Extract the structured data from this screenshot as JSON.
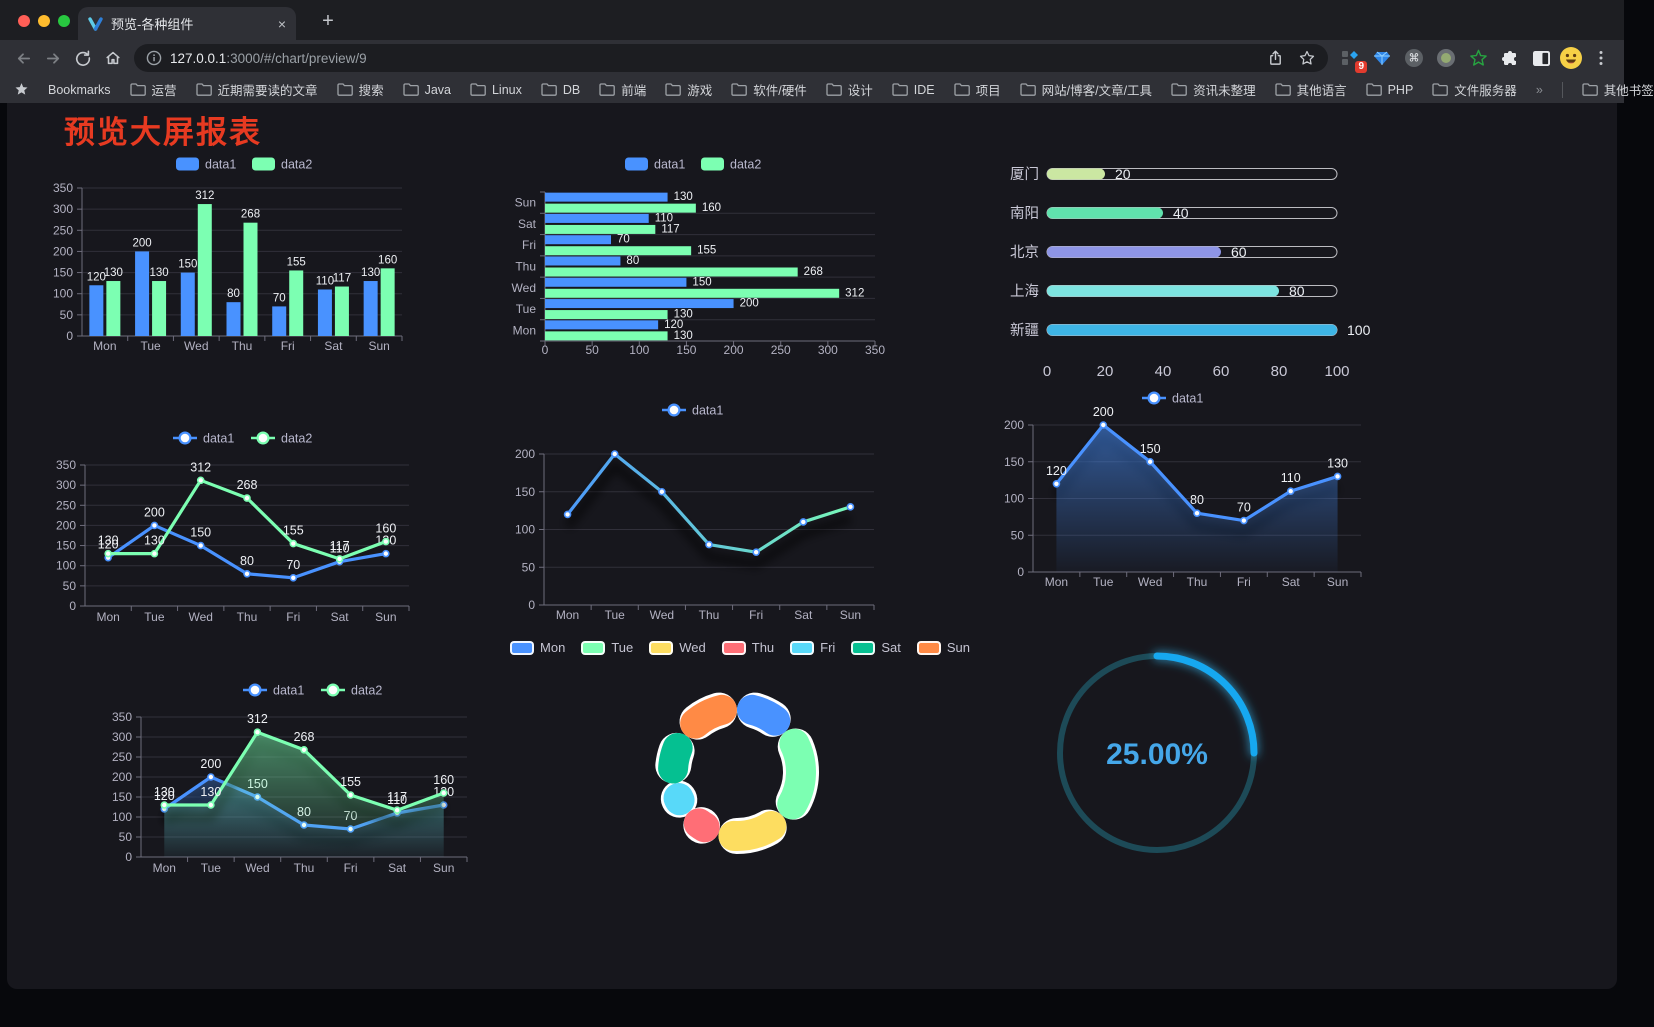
{
  "browser": {
    "traffic_lights": [
      "#ff5f57",
      "#febc2e",
      "#28c840"
    ],
    "tab_title": "预览-各种组件",
    "tab_close_label": "×",
    "new_tab_label": "+",
    "url_host": "127.0.0.1",
    "url_rest": ":3000/#/chart/preview/9",
    "extension_badge": "9",
    "bookmarks_label": "Bookmarks",
    "bookmark_folders": [
      "运营",
      "近期需要读的文章",
      "搜索",
      "Java",
      "Linux",
      "DB",
      "前端",
      "游戏",
      "软件/硬件",
      "设计",
      "IDE",
      "项目",
      "网站/博客/文章/工具",
      "资讯未整理",
      "其他语言",
      "PHP",
      "文件服务器"
    ],
    "overflow_chevron": "»",
    "other_bookmarks_label": "其他书签"
  },
  "page": {
    "title": "预览大屏报表",
    "title_color": "#e73a21"
  },
  "theme": {
    "axis_text": "#b3b2c2",
    "grid_line": "#31303a",
    "axis_line": "#6e6d7c",
    "label_text": "#eef0f4",
    "legend_text": "#b9b8ce",
    "background": "#17171d"
  },
  "chart_data": [
    {
      "id": "bar-grouped",
      "type": "bar",
      "categories": [
        "Mon",
        "Tue",
        "Wed",
        "Thu",
        "Fri",
        "Sat",
        "Sun"
      ],
      "series": [
        {
          "name": "data1",
          "color": "#4992ff",
          "values": [
            120,
            200,
            150,
            80,
            70,
            110,
            130
          ]
        },
        {
          "name": "data2",
          "color": "#7cffb2",
          "values": [
            130,
            130,
            312,
            268,
            155,
            117,
            160
          ]
        }
      ],
      "ylim": [
        0,
        350
      ],
      "ytick_step": 50,
      "legend_position": "top",
      "grid": true,
      "value_labels": true
    },
    {
      "id": "bar-horizontal",
      "type": "bar",
      "orientation": "horizontal",
      "categories_top_to_bottom": [
        "Sun",
        "Sat",
        "Fri",
        "Thu",
        "Wed",
        "Tue",
        "Mon"
      ],
      "series": [
        {
          "name": "data1",
          "color": "#4992ff",
          "values_top_to_bottom": [
            130,
            110,
            70,
            80,
            150,
            200,
            120
          ]
        },
        {
          "name": "data2",
          "color": "#7cffb2",
          "values_top_to_bottom": [
            160,
            117,
            155,
            268,
            312,
            130,
            130
          ]
        }
      ],
      "xlim": [
        0,
        350
      ],
      "xtick_step": 50,
      "legend_position": "top",
      "value_labels": true
    },
    {
      "id": "capsule-bars",
      "type": "bar",
      "orientation": "horizontal-capsule",
      "rows": [
        {
          "label": "厦门",
          "value": 20,
          "color": "#cbe7a2"
        },
        {
          "label": "南阳",
          "value": 40,
          "color": "#60e2ad"
        },
        {
          "label": "北京",
          "value": 60,
          "color": "#8e95e6"
        },
        {
          "label": "上海",
          "value": 80,
          "color": "#7de4e0"
        },
        {
          "label": "新疆",
          "value": 100,
          "color": "#3eb5e5"
        }
      ],
      "xlim": [
        0,
        100
      ],
      "xticks": [
        0,
        20,
        40,
        60,
        80,
        100
      ],
      "value_labels": true
    },
    {
      "id": "line-two-series",
      "type": "line",
      "categories": [
        "Mon",
        "Tue",
        "Wed",
        "Thu",
        "Fri",
        "Sat",
        "Sun"
      ],
      "series": [
        {
          "name": "data1",
          "color": "#4992ff",
          "values": [
            120,
            200,
            150,
            80,
            70,
            110,
            130
          ]
        },
        {
          "name": "data2",
          "color": "#7cffb2",
          "values": [
            130,
            130,
            312,
            268,
            155,
            117,
            160
          ]
        }
      ],
      "ylim": [
        0,
        350
      ],
      "ytick_step": 50,
      "legend_position": "top",
      "value_labels": true
    },
    {
      "id": "line-gradient",
      "type": "line",
      "categories": [
        "Mon",
        "Tue",
        "Wed",
        "Thu",
        "Fri",
        "Sat",
        "Sun"
      ],
      "series": [
        {
          "name": "data1",
          "color": "#4992ff",
          "gradient": [
            "#4992ff",
            "#7cffb2"
          ],
          "values": [
            120,
            200,
            150,
            80,
            70,
            110,
            130
          ]
        }
      ],
      "ylim": [
        0,
        200
      ],
      "ytick_step": 50,
      "legend_position": "top",
      "value_labels": false,
      "shadow": true
    },
    {
      "id": "area-single",
      "type": "area",
      "categories": [
        "Mon",
        "Tue",
        "Wed",
        "Thu",
        "Fri",
        "Sat",
        "Sun"
      ],
      "series": [
        {
          "name": "data1",
          "color": "#4992ff",
          "values": [
            120,
            200,
            150,
            80,
            70,
            110,
            130
          ]
        }
      ],
      "ylim": [
        0,
        200
      ],
      "ytick_step": 50,
      "legend_position": "top",
      "value_labels": true,
      "shadow": true
    },
    {
      "id": "area-two-series",
      "type": "area",
      "categories": [
        "Mon",
        "Tue",
        "Wed",
        "Thu",
        "Fri",
        "Sat",
        "Sun"
      ],
      "series": [
        {
          "name": "data1",
          "color": "#4992ff",
          "values": [
            120,
            200,
            150,
            80,
            70,
            110,
            130
          ]
        },
        {
          "name": "data2",
          "color": "#7cffb2",
          "values": [
            130,
            130,
            312,
            268,
            155,
            117,
            160
          ]
        }
      ],
      "ylim": [
        0,
        350
      ],
      "ytick_step": 50,
      "legend_position": "top",
      "value_labels": true,
      "shadow": true
    },
    {
      "id": "donut",
      "type": "pie",
      "inner_radius_ratio": 0.6,
      "border_color": "#ffffff",
      "legend_position": "top",
      "slices": [
        {
          "label": "Mon",
          "value": 120,
          "color": "#4992ff"
        },
        {
          "label": "Tue",
          "value": 200,
          "color": "#7cffb2"
        },
        {
          "label": "Wed",
          "value": 150,
          "color": "#fddd60"
        },
        {
          "label": "Thu",
          "value": 80,
          "color": "#ff6e76"
        },
        {
          "label": "Fri",
          "value": 70,
          "color": "#58d9f9"
        },
        {
          "label": "Sat",
          "value": 110,
          "color": "#05c091"
        },
        {
          "label": "Sun",
          "value": 130,
          "color": "#ff8a45"
        }
      ]
    },
    {
      "id": "gauge",
      "type": "gauge",
      "value": 25,
      "max": 100,
      "display": "25.00%",
      "progress_color": "#19a8f0",
      "track_color": "#1d4a57",
      "text_color": "#45a7e9"
    }
  ]
}
